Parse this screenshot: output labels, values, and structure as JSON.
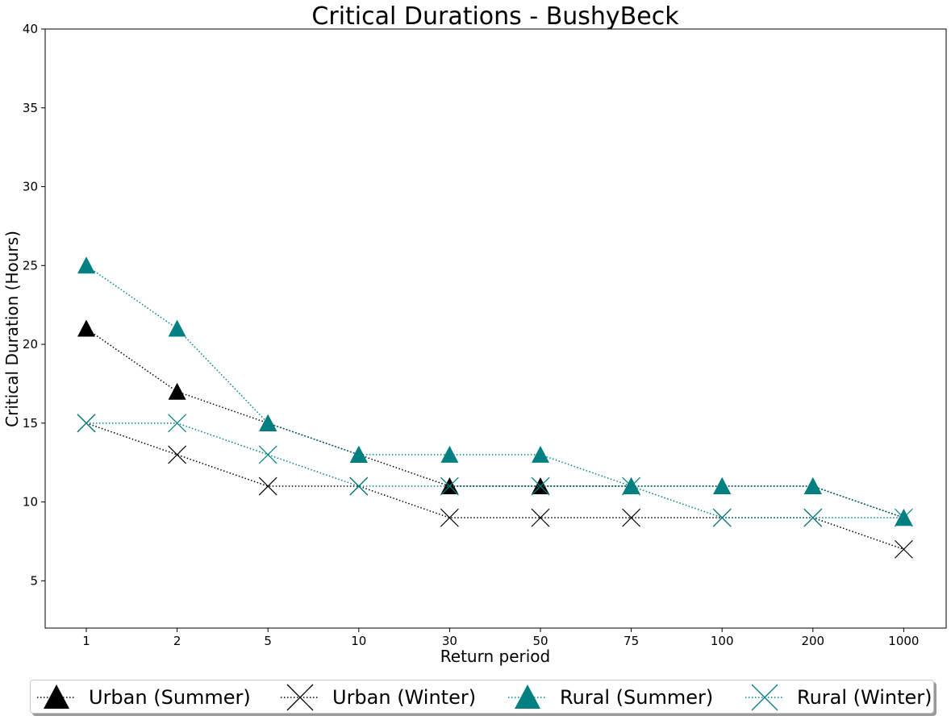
{
  "chart_data": {
    "type": "line",
    "title": "Critical Durations - BushyBeck",
    "xlabel": "Return period",
    "ylabel": "Critical Duration (Hours)",
    "categories": [
      "1",
      "2",
      "5",
      "10",
      "30",
      "50",
      "75",
      "100",
      "200",
      "1000"
    ],
    "ylim": [
      2,
      40
    ],
    "yticks": [
      "5",
      "10",
      "15",
      "20",
      "25",
      "30",
      "35",
      "40"
    ],
    "grid": false,
    "legend_position": "bottom",
    "series": [
      {
        "name": "Urban (Summer)",
        "marker": "triangle",
        "color": "#000000",
        "values": [
          21,
          17,
          15,
          13,
          11,
          11,
          11,
          11,
          11,
          9
        ]
      },
      {
        "name": "Urban (Winter)",
        "marker": "x",
        "color": "#000000",
        "values": [
          15,
          13,
          11,
          11,
          9,
          9,
          9,
          9,
          9,
          7
        ]
      },
      {
        "name": "Rural (Summer)",
        "marker": "triangle",
        "color": "#008080",
        "values": [
          25,
          21,
          15,
          13,
          13,
          13,
          11,
          11,
          11,
          9
        ]
      },
      {
        "name": "Rural (Winter)",
        "marker": "x",
        "color": "#008080",
        "values": [
          15,
          15,
          13,
          11,
          11,
          11,
          11,
          9,
          9,
          9
        ]
      }
    ]
  }
}
